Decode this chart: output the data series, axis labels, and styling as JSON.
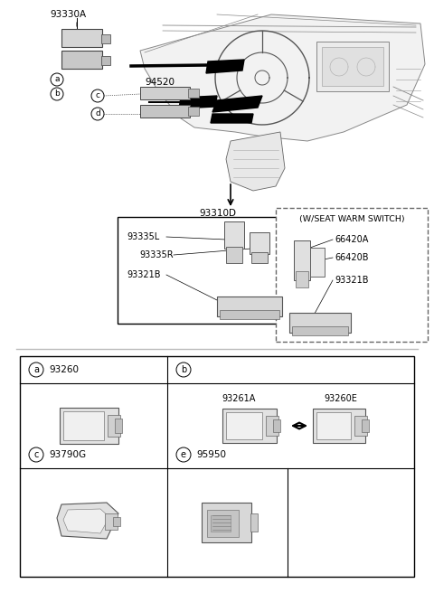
{
  "bg": "#ffffff",
  "top_section": {
    "dashboard_label": "93330A",
    "label_94520": "94520",
    "label_93310D": "93310D",
    "callouts": [
      "a",
      "b",
      "c",
      "d"
    ]
  },
  "solid_box": {
    "labels": [
      "93335L",
      "93335R",
      "93321B"
    ]
  },
  "dashed_box": {
    "title": "(W/SEAT WARM SWITCH)",
    "labels": [
      "66420A",
      "66420B",
      "93321B"
    ]
  },
  "bottom_table": {
    "cells_row1": [
      {
        "circle": "a",
        "part": "93260"
      },
      {
        "circle": "b",
        "part": ""
      }
    ],
    "cells_row2": [
      {
        "circle": "c",
        "part": "93790G"
      },
      {
        "circle": "e",
        "part": "95950"
      }
    ],
    "sub_labels_b": [
      "93261A",
      "93260E"
    ]
  }
}
